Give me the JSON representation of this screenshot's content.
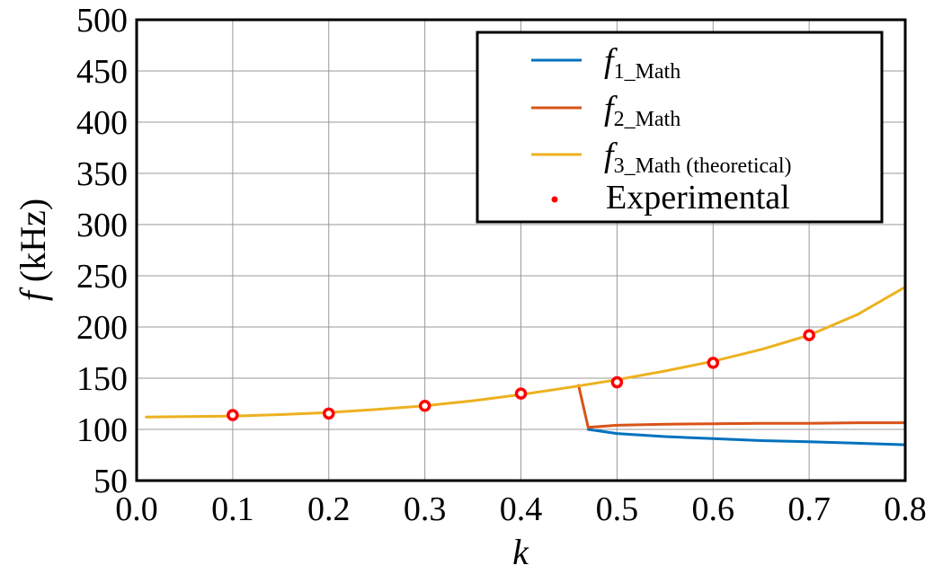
{
  "chart_data": {
    "type": "line",
    "title": "",
    "xlabel": "k",
    "ylabel_italic": "f",
    "ylabel_unit": " (kHz)",
    "xlim": [
      0.0,
      0.8
    ],
    "ylim": [
      50,
      500
    ],
    "x_ticks": [
      0.0,
      0.1,
      0.2,
      0.3,
      0.4,
      0.5,
      0.6,
      0.7,
      0.8
    ],
    "x_tick_labels": [
      "0.0",
      "0.1",
      "0.2",
      "0.3",
      "0.4",
      "0.5",
      "0.6",
      "0.7",
      "0.8"
    ],
    "y_ticks": [
      50,
      100,
      150,
      200,
      250,
      300,
      350,
      400,
      450,
      500
    ],
    "y_tick_labels": [
      "50",
      "100",
      "150",
      "200",
      "250",
      "300",
      "350",
      "400",
      "450",
      "500"
    ],
    "grid": true,
    "legend_position": "top-right",
    "series": [
      {
        "name": "f1_Math",
        "legend_main": "f",
        "legend_sub": "1_Math",
        "color": "#0072BD",
        "x": [
          0.47,
          0.5,
          0.55,
          0.6,
          0.65,
          0.7,
          0.75,
          0.8
        ],
        "y": [
          100,
          96,
          93,
          91,
          89,
          88,
          86.5,
          85
        ]
      },
      {
        "name": "f2_Math",
        "legend_main": "f",
        "legend_sub": "2_Math",
        "color": "#D95319",
        "x": [
          0.46,
          0.47,
          0.5,
          0.55,
          0.6,
          0.65,
          0.7,
          0.75,
          0.8
        ],
        "y": [
          143,
          102,
          104,
          105,
          105.5,
          106,
          106,
          106.5,
          106.5
        ]
      },
      {
        "name": "f3_Math (theoretical)",
        "legend_main": "f",
        "legend_sub": "3_Math",
        "legend_suffix": " (theoretical)",
        "color": "#EDB120",
        "x": [
          0.01,
          0.05,
          0.1,
          0.15,
          0.2,
          0.25,
          0.3,
          0.35,
          0.4,
          0.45,
          0.5,
          0.55,
          0.6,
          0.65,
          0.7,
          0.75,
          0.8
        ],
        "y": [
          112,
          112.5,
          113,
          114.5,
          116.5,
          119.5,
          123,
          128,
          134,
          141,
          148.5,
          157,
          166.5,
          178,
          192,
          212,
          239
        ]
      }
    ],
    "experimental": {
      "name": "Experimental",
      "color": "#FF0000",
      "x": [
        0.1,
        0.2,
        0.3,
        0.4,
        0.5,
        0.6,
        0.7
      ],
      "y": [
        114,
        115.5,
        123,
        135,
        146,
        165,
        192
      ]
    }
  }
}
